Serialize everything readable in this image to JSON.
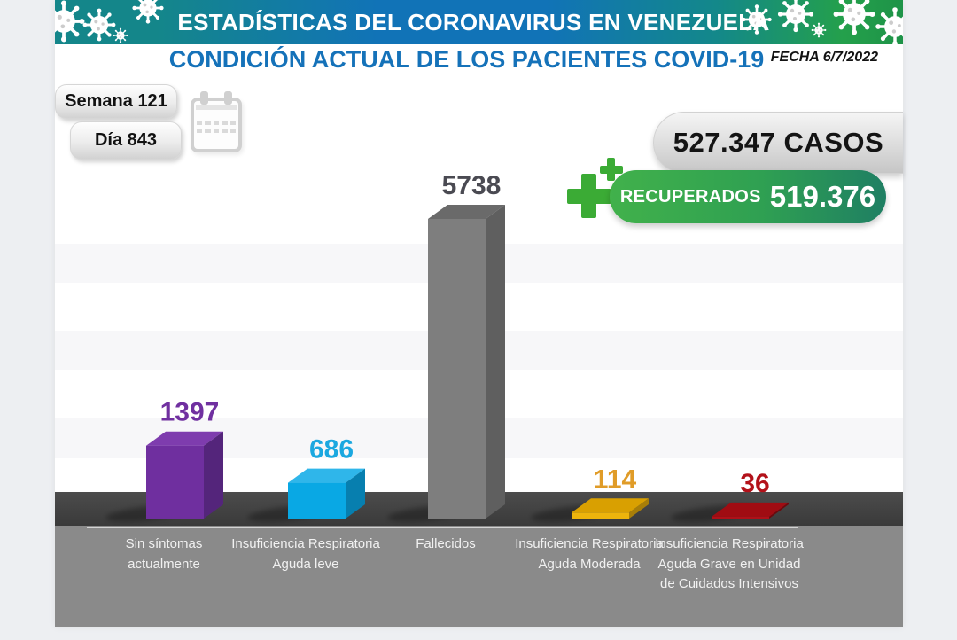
{
  "banner": {
    "title": "ESTADÍSTICAS DEL CORONAVIRUS EN VENEZUELA"
  },
  "header": {
    "subtitle": "CONDICIÓN ACTUAL DE LOS PACIENTES COVID-19",
    "date": "FECHA 6/7/2022"
  },
  "counters": {
    "week": "Semana 121",
    "day": "Día 843",
    "cases": "527.347 CASOS",
    "recovered_label": "RECUPERADOS",
    "recovered_value": "519.376"
  },
  "colors": {
    "banner_teal": "#14868A",
    "banner_blue": "#1173B7",
    "banner_green": "#24A04B",
    "subtitle_blue": "#1572B9",
    "cross_green": "#3BAB35",
    "recovered_gradient_start": "#41B14B",
    "recovered_gradient_end": "#1F7F63",
    "floor_gray": "#3F3F3F",
    "footer_gray": "#8A8A8A"
  },
  "chart_data": {
    "type": "bar",
    "style": "3d-column",
    "title": "CONDICIÓN ACTUAL DE LOS PACIENTES COVID-19",
    "xlabel": "",
    "ylabel": "",
    "ylim": [
      0,
      6000
    ],
    "grid": "alternating horizontal bands",
    "legend": "none",
    "categories": [
      "Sin síntomas actualmente",
      "Insuficiencia Respiratoria Aguda leve",
      "Fallecidos",
      "Insuficiencia Respiratoria Aguda Moderada",
      "Insuficiencia Respiratoria Aguda Grave en Unidad de Cuidados Intensivos"
    ],
    "values": [
      1397,
      686,
      5738,
      114,
      36
    ],
    "value_label_colors": [
      "#7030A0",
      "#1BA8E0",
      "#4A4A52",
      "#E09C28",
      "#B3121A"
    ],
    "bar_faces": [
      {
        "front": "#6F2F9F",
        "top": "#7E3CAE",
        "side": "#54257B"
      },
      {
        "front": "#09A8E4",
        "top": "#2FB6EA",
        "side": "#077FAF"
      },
      {
        "front": "#7E7E7E",
        "top": "#6A6A6A",
        "side": "#5F5F5F"
      },
      {
        "front": "#EDB40C",
        "top": "#D9A001",
        "side": "#A87E08"
      },
      {
        "front": "#B01018",
        "top": "#A00C12",
        "side": "#6E080C"
      }
    ]
  }
}
